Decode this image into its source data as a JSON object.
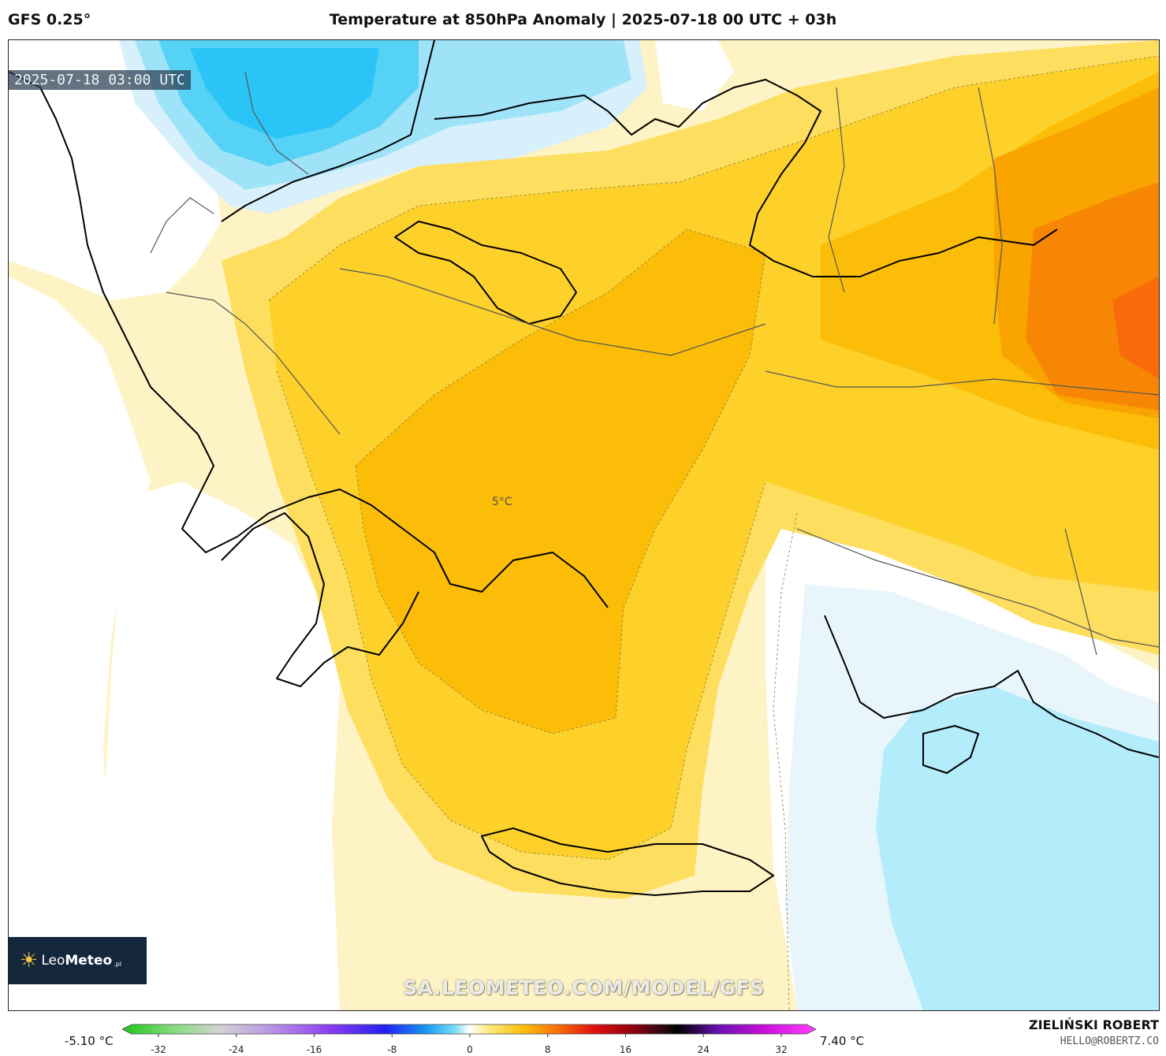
{
  "header": {
    "model": "GFS 0.25°",
    "title": "Temperature at 850hPa Anomaly | 2025-07-18 00 UTC + 03h"
  },
  "map": {
    "valid_time": "2025-07-18 03:00 UTC",
    "point_label": "5°C",
    "watermark": "SA.LEOMETEO.COM/MODEL/GFS",
    "logo": {
      "sun": "☀",
      "leo": "Leo",
      "meteo": "Meteo",
      "suffix": ".pl"
    },
    "colors": {
      "neutral": "#ffffff",
      "pale_yellow": "#fdf3c4",
      "yellow": "#fdde5f",
      "gold": "#fdd12a",
      "amber": "#fbbd07",
      "orange": "#f9a400",
      "dark_orange": "#f88605",
      "red_orange": "#f96a0a",
      "pale_blue": "#e8f6fc",
      "light_blue": "#b3ecfb",
      "blue": "#6ed8f8",
      "bright_blue": "#2ac4f6"
    }
  },
  "legend": {
    "min_label": "-5.10 °C",
    "max_label": "7.40 °C",
    "ticks": [
      "-32",
      "-24",
      "-16",
      "-8",
      "0",
      "8",
      "16",
      "24",
      "32"
    ]
  },
  "footer": {
    "author": "ZIELIŃSKI ROBERT",
    "email": "HELLO@ROBERTZ.CO"
  }
}
